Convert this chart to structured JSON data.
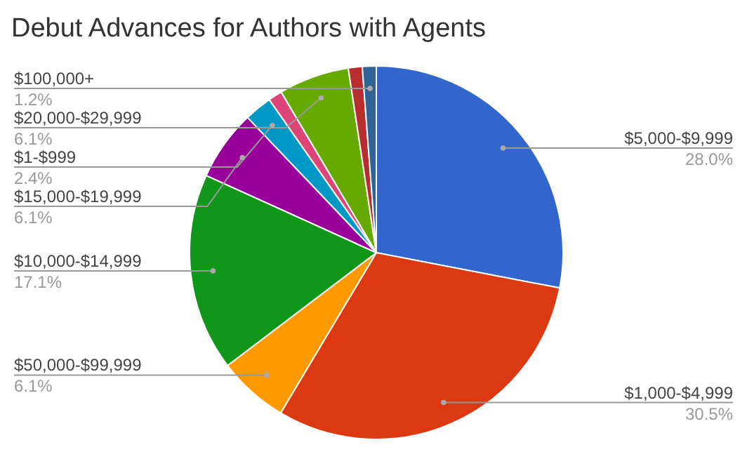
{
  "chart_data": {
    "type": "pie",
    "title": "Debut Advances for Authors with Agents",
    "categories": [
      "$5,000-$9,999",
      "$1,000-$4,999",
      "$50,000-$99,999",
      "$10,000-$14,999",
      "$15,000-$19,999",
      "$1-$999",
      null,
      "$20,000-$29,999",
      null,
      "$100,000+"
    ],
    "values": [
      28.0,
      30.5,
      6.1,
      17.1,
      6.1,
      2.4,
      1.2,
      6.1,
      1.2,
      1.2
    ],
    "value_labels": [
      "28.0%",
      "30.5%",
      "6.1%",
      "17.1%",
      "6.1%",
      "2.4%",
      null,
      "6.1%",
      null,
      "1.2%"
    ],
    "colors": [
      "#3366cc",
      "#dc3912",
      "#ff9900",
      "#109618",
      "#990099",
      "#0099c6",
      "#dd4477",
      "#66aa00",
      "#b82e2e",
      "#316395"
    ]
  }
}
